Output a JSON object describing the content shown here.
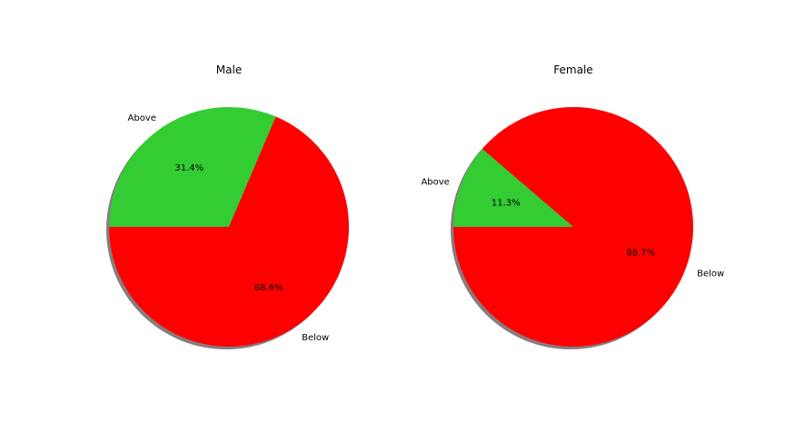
{
  "chart_data": [
    {
      "type": "pie",
      "title": "Male",
      "labels": [
        "Above",
        "Below"
      ],
      "values": [
        31.4,
        68.6
      ],
      "autopct": [
        "31.4%",
        "68.6%"
      ],
      "colors": [
        "#33cc33",
        "#ff0000"
      ],
      "start_angle_deg": 180,
      "direction": "clockwise",
      "shadow": true
    },
    {
      "type": "pie",
      "title": "Female",
      "labels": [
        "Above",
        "Below"
      ],
      "values": [
        11.3,
        88.7
      ],
      "autopct": [
        "11.3%",
        "88.7%"
      ],
      "colors": [
        "#33cc33",
        "#ff0000"
      ],
      "start_angle_deg": 180,
      "direction": "clockwise",
      "shadow": true
    }
  ]
}
